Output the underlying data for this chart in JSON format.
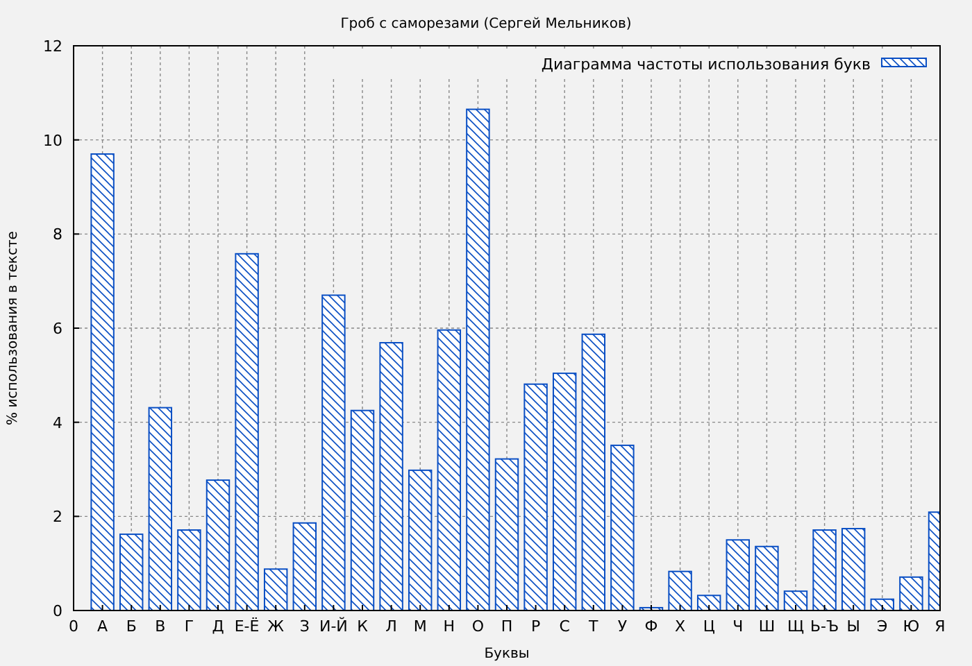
{
  "chart_data": {
    "type": "bar",
    "title": "Гроб с саморезами (Сергей Мельников)",
    "xlabel": "Буквы",
    "ylabel": "% использования в тексте",
    "categories": [
      "0",
      "А",
      "Б",
      "В",
      "Г",
      "Д",
      "Е-Ё",
      "Ж",
      "З",
      "И-Й",
      "К",
      "Л",
      "М",
      "Н",
      "О",
      "П",
      "Р",
      "С",
      "Т",
      "У",
      "Ф",
      "Х",
      "Ц",
      "Ч",
      "Ш",
      "Щ",
      "Ь-Ъ",
      "Ы",
      "Э",
      "Ю",
      "Я"
    ],
    "series": [
      {
        "name": "Диаграмма частоты использования букв",
        "color": "#0a4fc4",
        "values": [
          null,
          9.7,
          1.62,
          4.31,
          1.71,
          2.77,
          7.58,
          0.88,
          1.86,
          6.7,
          4.25,
          5.69,
          2.98,
          5.96,
          10.65,
          3.22,
          4.81,
          5.04,
          5.87,
          3.51,
          0.06,
          0.83,
          0.32,
          1.5,
          1.36,
          0.41,
          1.71,
          1.74,
          0.24,
          0.71,
          2.09
        ]
      }
    ],
    "ylim": [
      0,
      12
    ],
    "yticks": [
      0,
      2,
      4,
      6,
      8,
      10,
      12
    ],
    "grid": true,
    "legend": "top right"
  }
}
